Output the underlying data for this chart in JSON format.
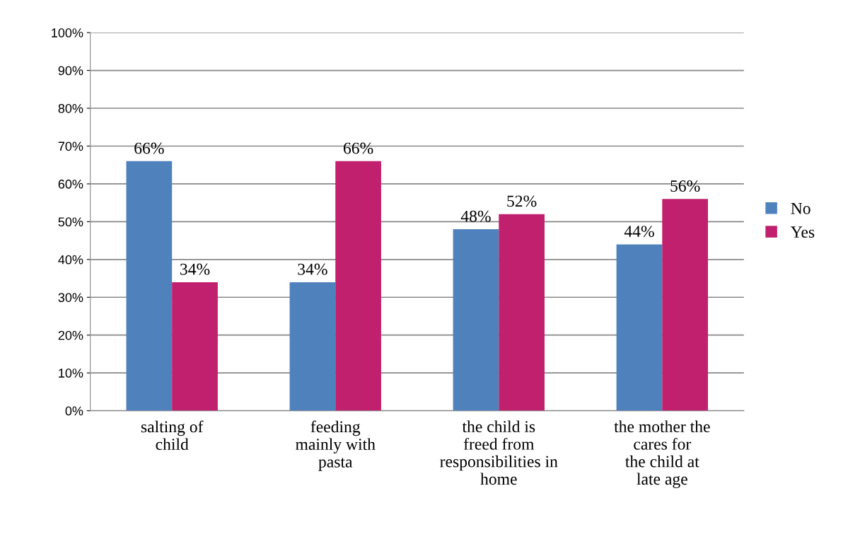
{
  "chart_data": {
    "type": "bar",
    "categories": [
      "salting of\nchild",
      "feeding\nmainly with\npasta",
      "the child is\nfreed from\nresponsibilities in\nhome",
      "the mother the\ncares for\nthe child at\nlate age"
    ],
    "series": [
      {
        "name": "No",
        "color": "#4f81bd",
        "values": [
          66,
          34,
          48,
          44
        ],
        "value_labels": [
          "66%",
          "34%",
          "48%",
          "44%"
        ]
      },
      {
        "name": "Yes",
        "color": "#c0206e",
        "values": [
          34,
          66,
          52,
          56
        ],
        "value_labels": [
          "34%",
          "66%",
          "52%",
          "56%"
        ]
      }
    ],
    "ylim": [
      0,
      100
    ],
    "yticks": [
      {
        "value": 0,
        "label": "0%"
      },
      {
        "value": 10,
        "label": "10%"
      },
      {
        "value": 20,
        "label": "20%"
      },
      {
        "value": 30,
        "label": "30%"
      },
      {
        "value": 40,
        "label": "40%"
      },
      {
        "value": 50,
        "label": "50%"
      },
      {
        "value": 60,
        "label": "60%"
      },
      {
        "value": 70,
        "label": "70%"
      },
      {
        "value": 80,
        "label": "80%"
      },
      {
        "value": 90,
        "label": "90%"
      },
      {
        "value": 100,
        "label": "100%"
      }
    ],
    "grid": "y",
    "legend": "right"
  }
}
